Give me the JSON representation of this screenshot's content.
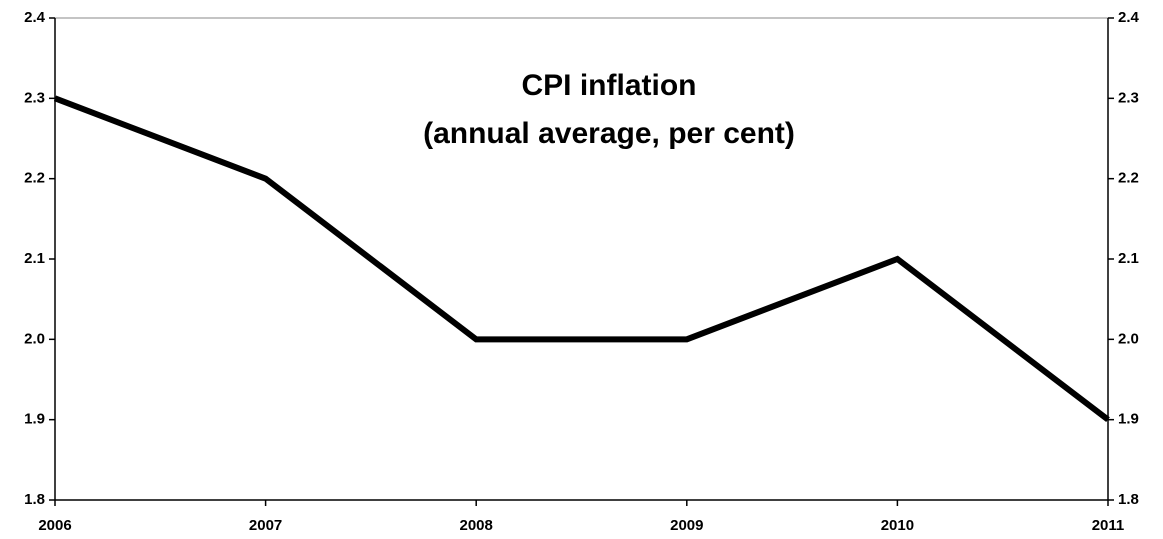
{
  "chart_data": {
    "type": "line",
    "title": "CPI inflation",
    "subtitle": "(annual average, per cent)",
    "x": [
      2006,
      2007,
      2008,
      2009,
      2010,
      2011
    ],
    "series": [
      {
        "name": "CPI inflation",
        "color": "#000000",
        "values": [
          2.3,
          2.2,
          2.0,
          2.0,
          2.1,
          1.9
        ]
      }
    ],
    "xlim": [
      2006,
      2011
    ],
    "xticks": [
      2006,
      2007,
      2008,
      2009,
      2010,
      2011
    ],
    "ylim": [
      1.8,
      2.4
    ],
    "yticks": [
      1.8,
      1.9,
      {
        "value": 2,
        "label": "2.0"
      },
      2.1,
      2.2,
      2.3,
      2.4
    ],
    "grid": false
  }
}
